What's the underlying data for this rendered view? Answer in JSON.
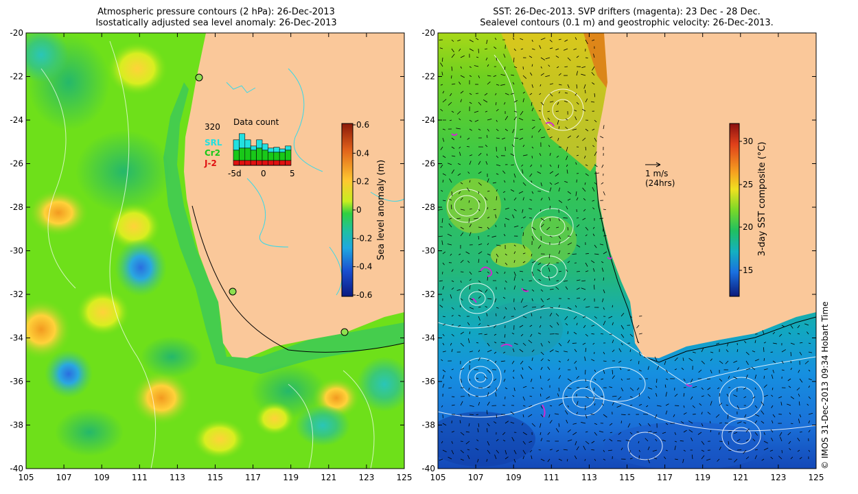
{
  "left_panel": {
    "title_line1": "Atmospheric pressure contours (2 hPa): 26-Dec-2013",
    "title_line2": "Isostatically adjusted sea level anomaly: 26-Dec-2013",
    "x_ticks": [
      "105",
      "107",
      "109",
      "111",
      "113",
      "115",
      "117",
      "119",
      "121",
      "123",
      "125"
    ],
    "y_ticks": [
      "-20",
      "-22",
      "-24",
      "-26",
      "-28",
      "-30",
      "-32",
      "-34",
      "-36",
      "-38",
      "-40"
    ],
    "colorbar": {
      "label": "Sea level anomaly (m)",
      "ticks": [
        "0.6",
        "0.4",
        "0.2",
        "0",
        "-0.2",
        "-0.4",
        "-0.6"
      ]
    },
    "inset": {
      "title": "Data count",
      "max_label": "320",
      "legend": [
        {
          "label": "SRL",
          "color": "#22e0e0"
        },
        {
          "label": "Cr2",
          "color": "#19c819"
        },
        {
          "label": "J-2",
          "color": "#e01010"
        }
      ],
      "x_ticks": [
        "-5d",
        "0",
        "5"
      ],
      "bars": [
        {
          "srl": 0.25,
          "cr2": 0.25,
          "j2": 0.12
        },
        {
          "srl": 0.35,
          "cr2": 0.3,
          "j2": 0.12
        },
        {
          "srl": 0.2,
          "cr2": 0.3,
          "j2": 0.12
        },
        {
          "srl": 0.1,
          "cr2": 0.25,
          "j2": 0.12
        },
        {
          "srl": 0.2,
          "cr2": 0.3,
          "j2": 0.12
        },
        {
          "srl": 0.15,
          "cr2": 0.25,
          "j2": 0.12
        },
        {
          "srl": 0.1,
          "cr2": 0.2,
          "j2": 0.12
        },
        {
          "srl": 0.12,
          "cr2": 0.2,
          "j2": 0.12
        },
        {
          "srl": 0.08,
          "cr2": 0.2,
          "j2": 0.12
        },
        {
          "srl": 0.1,
          "cr2": 0.25,
          "j2": 0.12
        }
      ]
    }
  },
  "right_panel": {
    "title_line1": "SST: 26-Dec-2013. SVP drifters (magenta): 23 Dec - 28 Dec.",
    "title_line2": "Sealevel contours (0.1 m) and geostrophic velocity: 26-Dec-2013.",
    "x_ticks": [
      "105",
      "107",
      "109",
      "111",
      "113",
      "115",
      "117",
      "119",
      "121",
      "123",
      "125"
    ],
    "y_ticks": [
      "-20",
      "-22",
      "-24",
      "-26",
      "-28",
      "-30",
      "-32",
      "-34",
      "-36",
      "-38",
      "-40"
    ],
    "velocity_scale": {
      "label1": "1 m/s",
      "label2": "(24hrs)"
    },
    "colorbar": {
      "label": "3-day SST composite (°C)",
      "ticks": [
        "30",
        "25",
        "20",
        "15"
      ]
    }
  },
  "credit": "© IMOS 31-Dec-2013 09:34 Hobart Time",
  "colors": {
    "land": "#fac89a",
    "slr_green": "#6ee01a",
    "sst_green": "#2ec850"
  }
}
